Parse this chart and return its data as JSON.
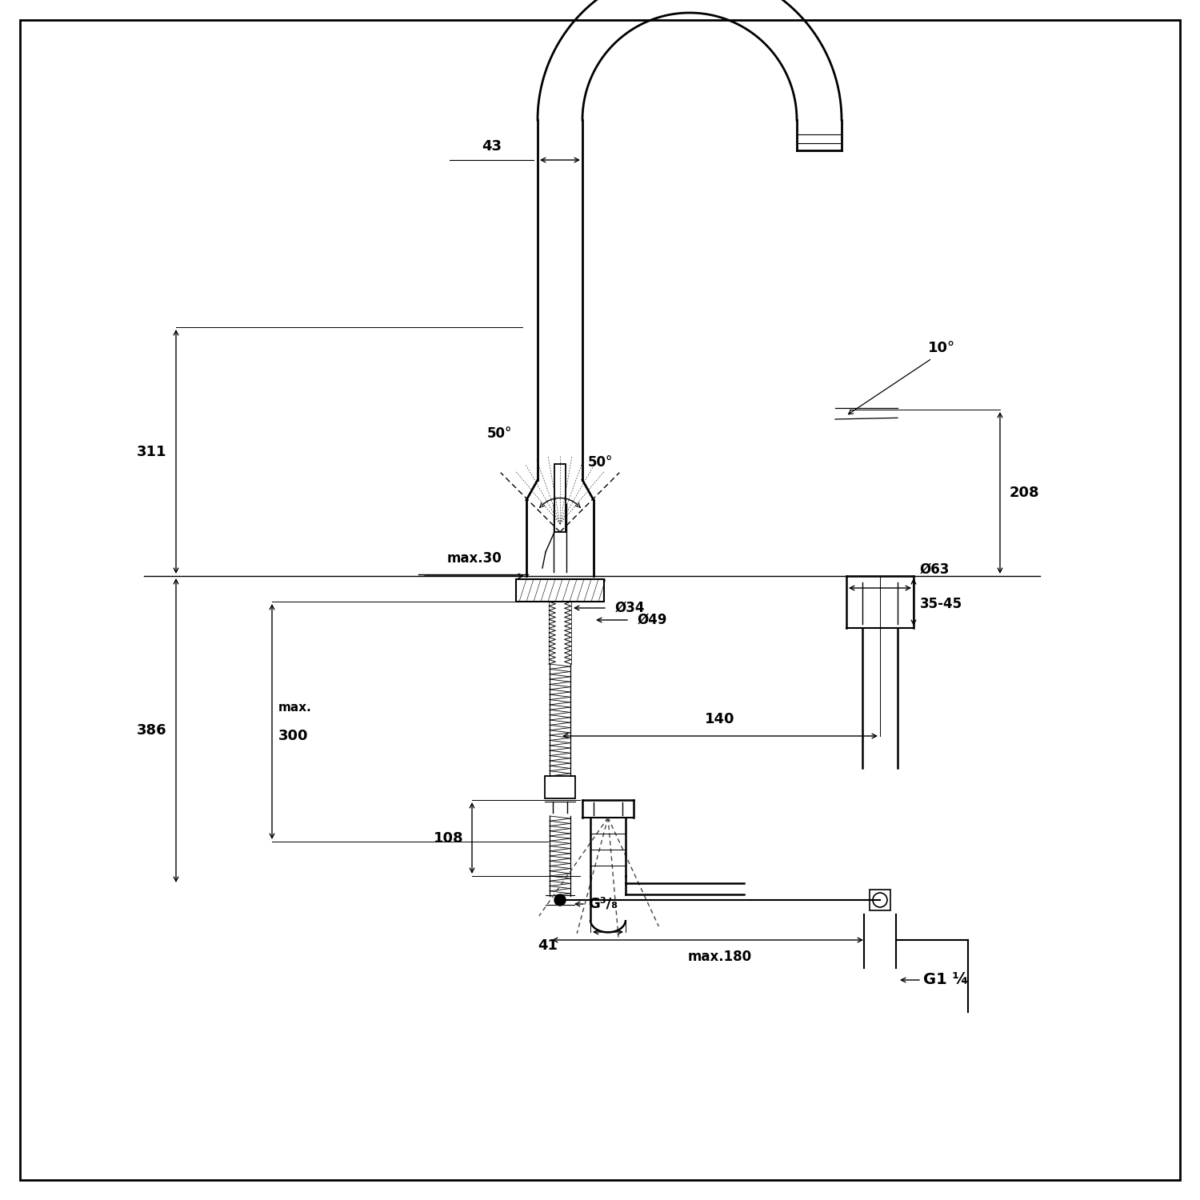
{
  "bg_color": "#ffffff",
  "line_color": "#000000",
  "annotations": {
    "dim_43": "43",
    "dim_311": "311",
    "dim_208": "208",
    "dim_50_1": "50°",
    "dim_50_2": "50°",
    "dim_10": "10°",
    "dim_max30": "max.30",
    "dim_phi49": "Ø49",
    "dim_phi34": "Ø34",
    "dim_phi63": "Ø63",
    "dim_386": "386",
    "dim_max": "max.",
    "dim_300": "300",
    "dim_140": "140",
    "dim_3545": "35-45",
    "dim_G38": "G³/₈",
    "dim_G114": "G1 ¼",
    "dim_max180": "max.180",
    "dim_108": "108",
    "dim_41": "41"
  }
}
